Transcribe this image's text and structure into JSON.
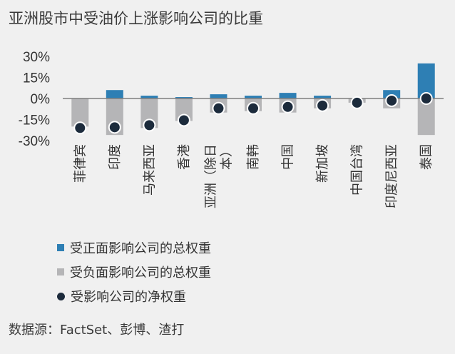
{
  "title": "亚洲股市中受油价上涨影响公司的比重",
  "source": "数据源：FactSet、彭博、渣打",
  "legend": {
    "positive": "受正面影响公司的总权重",
    "negative": "受负面影响公司的总权重",
    "net": "受影响公司的净权重"
  },
  "colors": {
    "positive": "#2e7fb4",
    "negative": "#b5b5b7",
    "net": "#1c2b3c",
    "axis": "#7f7f7f"
  },
  "chart_data": {
    "type": "bar",
    "ylim": [
      -30,
      30
    ],
    "yticks": [
      "30%",
      "15%",
      "0%",
      "-15%",
      "-30%"
    ],
    "ytick_values": [
      30,
      15,
      0,
      -15,
      -30
    ],
    "categories": [
      {
        "label": "菲律宾",
        "lines": [
          "菲律宾"
        ]
      },
      {
        "label": "印度",
        "lines": [
          "印度"
        ]
      },
      {
        "label": "马来西亚",
        "lines": [
          "马来西亚"
        ]
      },
      {
        "label": "香港",
        "lines": [
          "香港"
        ]
      },
      {
        "label": "亚洲（除日本）",
        "lines": [
          "亚洲（除日",
          "本）"
        ]
      },
      {
        "label": "南韩",
        "lines": [
          "南韩"
        ]
      },
      {
        "label": "中国",
        "lines": [
          "中国"
        ]
      },
      {
        "label": "新加坡",
        "lines": [
          "新加坡"
        ]
      },
      {
        "label": "中国台湾",
        "lines": [
          "中国台湾"
        ]
      },
      {
        "label": "印度尼西亚",
        "lines": [
          "印度尼西亚"
        ]
      },
      {
        "label": "泰国",
        "lines": [
          "泰国"
        ]
      }
    ],
    "series": [
      {
        "name": "受正面影响公司的总权重",
        "values": [
          0,
          6,
          2,
          1,
          3,
          2,
          4,
          2,
          0,
          6,
          25
        ]
      },
      {
        "name": "受负面影响公司的总权重",
        "values": [
          -20,
          -26,
          -21,
          -16,
          -10,
          -9,
          -10,
          -7,
          -3,
          -7,
          -26
        ]
      },
      {
        "name": "受影响公司的净权重",
        "values": [
          -21,
          -20.5,
          -19,
          -15.5,
          -7,
          -7,
          -6,
          -5,
          -3,
          -1.5,
          0
        ]
      }
    ]
  }
}
